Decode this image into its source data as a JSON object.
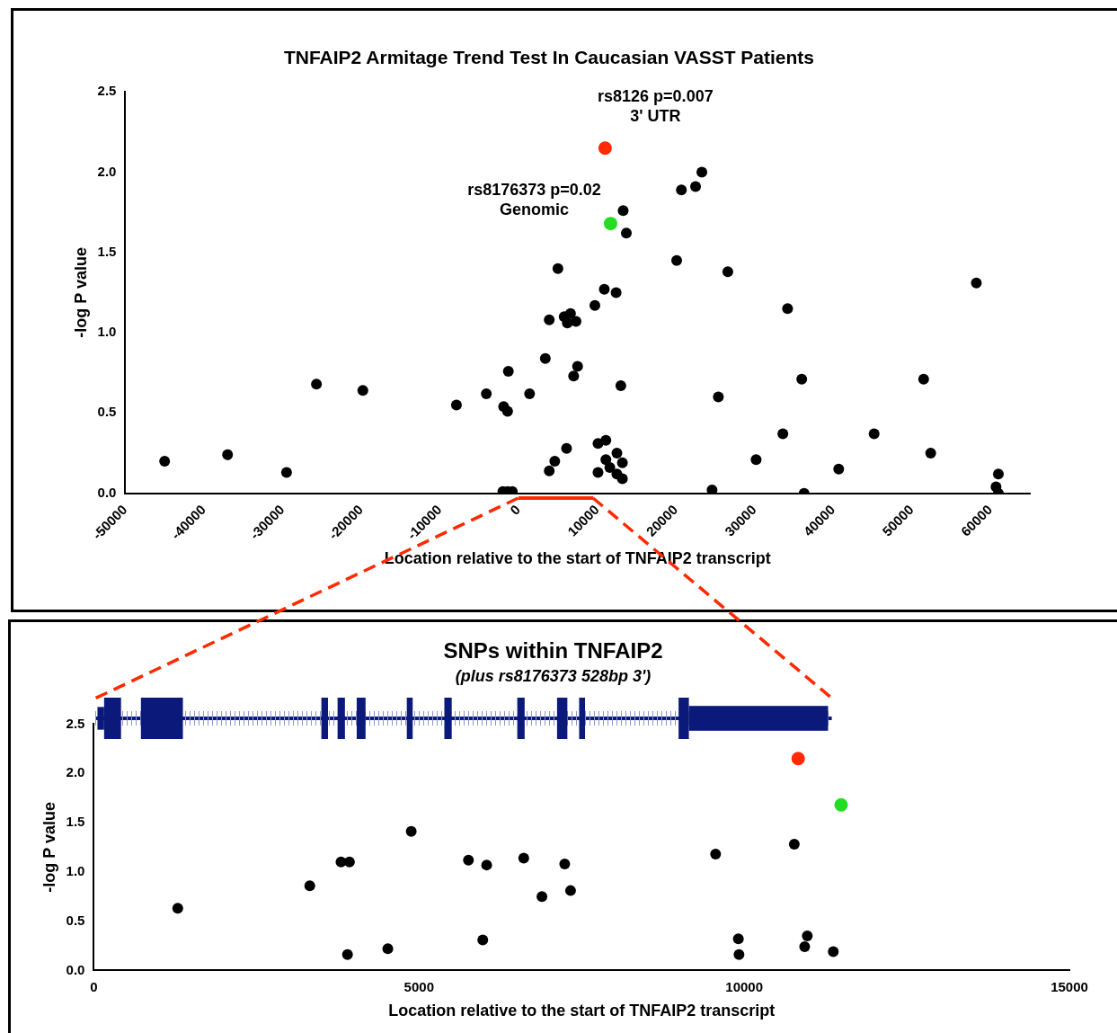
{
  "chart_data": [
    {
      "type": "scatter",
      "title": "TNFAIP2 Armitage Trend Test In Caucasian VASST Patients",
      "xlabel": "Location relative to the start of TNFAIP2 transcript",
      "ylabel": "-log P value",
      "xlim": [
        -50000,
        65000
      ],
      "xticks": [
        -50000,
        -40000,
        -30000,
        -20000,
        -10000,
        0,
        10000,
        20000,
        30000,
        40000,
        50000,
        60000
      ],
      "ylim": [
        0,
        2.5
      ],
      "yticks": [
        {
          "value": 0,
          "label": "0.0"
        },
        0.5,
        {
          "value": 1,
          "label": "1.0"
        },
        1.5,
        {
          "value": 2,
          "label": "2.0"
        },
        2.5
      ],
      "marker": "circle",
      "annotations": [
        {
          "text": "rs8126 p=0.007\n3' UTR",
          "x": 11000,
          "y": 2.15
        },
        {
          "text": "rs8176373 p=0.02\nGenomic",
          "x": 11700,
          "y": 1.68
        }
      ],
      "series": [
        {
          "color": "#000000",
          "x": [
            -45000,
            -37000,
            -29500,
            -25700,
            -19800,
            -7900,
            -4100,
            -1900,
            -1400,
            -1300,
            1400,
            -2000,
            -1400,
            -800,
            3400,
            3900,
            4600,
            5000,
            3900,
            5800,
            6600,
            6100,
            6200,
            7300,
            7500,
            7000,
            9700,
            10100,
            10100,
            10900,
            11100,
            11100,
            11600,
            12400,
            12500,
            12500,
            13200,
            13200,
            13000,
            13300,
            13700,
            20100,
            20700,
            22500,
            23300,
            24600,
            25400,
            26600,
            30200,
            33600,
            34200,
            36000,
            36300,
            40700,
            45200,
            51500,
            52400,
            58200,
            61000,
            60700,
            61000
          ],
          "values": [
            0.2,
            0.24,
            0.13,
            0.68,
            0.64,
            0.55,
            0.62,
            0.54,
            0.51,
            0.76,
            0.62,
            0.01,
            0.01,
            0.01,
            0.84,
            0.14,
            0.2,
            1.4,
            1.08,
            1.1,
            1.12,
            0.28,
            1.06,
            1.07,
            0.79,
            0.73,
            1.17,
            0.31,
            0.13,
            1.27,
            0.33,
            0.21,
            0.16,
            1.25,
            0.25,
            0.12,
            0.19,
            0.09,
            0.67,
            1.76,
            1.62,
            1.45,
            1.89,
            1.91,
            2.0,
            0.02,
            0.6,
            1.38,
            0.21,
            0.37,
            1.15,
            0.71,
            0.0,
            0.15,
            0.37,
            0.71,
            0.25,
            1.31,
            0.12,
            0.04,
            0.0
          ]
        },
        {
          "color": "#ff2a00",
          "x": [
            11000
          ],
          "values": [
            2.15
          ]
        },
        {
          "color": "#22dd22",
          "x": [
            11700
          ],
          "values": [
            1.68
          ]
        }
      ]
    },
    {
      "type": "scatter",
      "title": "SNPs within TNFAIP2",
      "subtitle": "(plus rs8176373 528bp 3')",
      "xlabel": "Location relative to the start of TNFAIP2 transcript",
      "ylabel": "-log P value",
      "xlim": [
        0,
        15000
      ],
      "xticks": [
        0,
        5000,
        10000,
        15000
      ],
      "ylim": [
        0,
        2.5
      ],
      "yticks": [
        {
          "value": 0,
          "label": "0.0"
        },
        0.5,
        {
          "value": 1,
          "label": "1.0"
        },
        1.5,
        {
          "value": 2,
          "label": "2.0"
        },
        2.5
      ],
      "marker": "circle",
      "series": [
        {
          "color": "#000000",
          "x": [
            1290,
            3320,
            3800,
            3930,
            3900,
            4520,
            4880,
            5760,
            5980,
            6040,
            6610,
            6890,
            7240,
            7330,
            9560,
            9910,
            9920,
            10770,
            10930,
            10970,
            11370
          ],
          "values": [
            0.63,
            0.86,
            1.1,
            1.1,
            0.16,
            0.22,
            1.41,
            1.12,
            0.31,
            1.07,
            1.14,
            0.75,
            1.08,
            0.81,
            1.18,
            0.32,
            0.16,
            1.28,
            0.24,
            0.35,
            0.19
          ]
        },
        {
          "color": "#ff2a00",
          "x": [
            10830
          ],
          "values": [
            2.15
          ]
        },
        {
          "color": "#22dd22",
          "x": [
            11490
          ],
          "values": [
            1.68
          ]
        }
      ]
    }
  ]
}
